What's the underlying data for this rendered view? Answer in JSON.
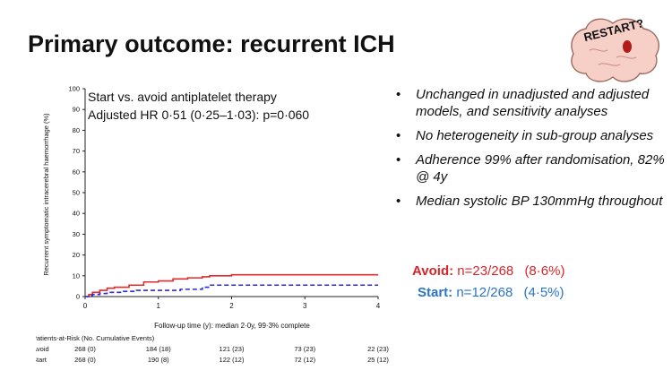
{
  "slide": {
    "title": "Primary outcome: recurrent ICH"
  },
  "logo": {
    "text": "RESTART?"
  },
  "chart_data": {
    "type": "line",
    "title": "Start vs. avoid antiplatelet therapy",
    "subtitle": "Adjusted HR 0·51 (0·25–1·03): p=0·060",
    "ylabel": "Recurrent symptomatic intracerebral haemorrhage (%)",
    "xlabel": "Follow-up time (y): median 2·0y, 99·3% complete",
    "ylim": [
      0,
      100
    ],
    "xlim": [
      0,
      4
    ],
    "yticks": [
      0,
      10,
      20,
      30,
      40,
      50,
      60,
      70,
      80,
      90,
      100
    ],
    "xticks": [
      0,
      1,
      2,
      3,
      4
    ],
    "series": [
      {
        "name": "Avoid",
        "color": "#e02b2b",
        "style": "solid",
        "x": [
          0,
          0.05,
          0.1,
          0.2,
          0.3,
          0.4,
          0.6,
          0.8,
          1.0,
          1.2,
          1.4,
          1.6,
          1.7,
          2.0,
          4.0
        ],
        "y": [
          0,
          1,
          2,
          3,
          4,
          4.5,
          5.5,
          7,
          7.5,
          8.5,
          9,
          9.5,
          10,
          10.5,
          10.5
        ]
      },
      {
        "name": "Start",
        "color": "#2a2ae0",
        "style": "dashed",
        "x": [
          0,
          0.05,
          0.1,
          0.2,
          0.3,
          0.5,
          0.7,
          1.0,
          1.3,
          1.6,
          1.7,
          2.0,
          4.0
        ],
        "y": [
          0,
          0.5,
          1,
          1.5,
          2,
          2.5,
          3,
          3,
          3.5,
          4.5,
          5.5,
          5.5,
          5.5
        ]
      }
    ],
    "risk_table": {
      "header": "Patients-at-Risk (No. Cumulative Events)",
      "times": [
        0,
        1,
        2,
        3,
        4
      ],
      "rows": [
        {
          "label": "Avoid",
          "values": [
            "268 (0)",
            "184 (18)",
            "121 (23)",
            "73 (23)",
            "22 (23)"
          ]
        },
        {
          "label": "Start",
          "values": [
            "268 (0)",
            "190 (8)",
            "122 (12)",
            "72 (12)",
            "25 (12)"
          ]
        }
      ]
    }
  },
  "bullets": [
    "Unchanged in unadjusted and adjusted models, and sensitivity analyses",
    "No heterogeneity in sub-group analyses",
    "Adherence 99% after randomisation, 82% @ 4y",
    "Median systolic BP 130mmHg throughout"
  ],
  "results": {
    "avoid": {
      "label": "Avoid:",
      "count": "n=23/268",
      "pct": "(8·6%)",
      "color": "#d9252a"
    },
    "start": {
      "label": "Start:",
      "count": "n=12/268",
      "pct": "(4·5%)",
      "color": "#2a74c8"
    }
  }
}
